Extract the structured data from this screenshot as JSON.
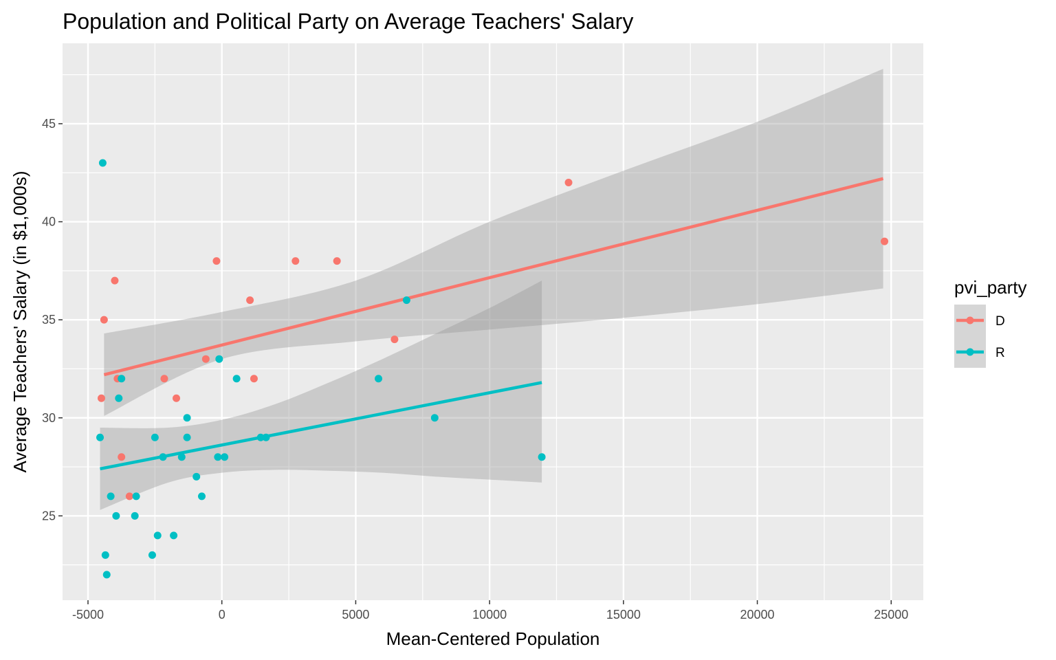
{
  "chart_data": {
    "type": "scatter",
    "title": "Population and Political Party on Average Teachers' Salary",
    "xlabel": "Mean-Centered Population",
    "ylabel": "Average Teachers' Salary (in $1,000s)",
    "xlim": [
      -5950,
      26200
    ],
    "ylim": [
      20.7,
      49.1
    ],
    "x_ticks": [
      -5000,
      0,
      5000,
      10000,
      15000,
      20000,
      25000
    ],
    "x_tick_labels": [
      "-5000",
      "0",
      "5000",
      "10000",
      "15000",
      "20000",
      "25000"
    ],
    "y_ticks": [
      25,
      30,
      35,
      40,
      45
    ],
    "y_tick_labels": [
      "25",
      "30",
      "35",
      "40",
      "45"
    ],
    "grid": true,
    "legend": {
      "title": "pvi_party",
      "position": "right",
      "entries": [
        "D",
        "R"
      ]
    },
    "colors": {
      "D": "#F8766D",
      "R": "#00BFC4",
      "panel": "#EBEBEB",
      "ribbon": "#999999"
    },
    "series": [
      {
        "name": "D",
        "color": "#F8766D",
        "points": [
          [
            -4500,
            31
          ],
          [
            -4400,
            35
          ],
          [
            -4000,
            37
          ],
          [
            -3900,
            32
          ],
          [
            -3750,
            28
          ],
          [
            -3450,
            26
          ],
          [
            -2150,
            32
          ],
          [
            -1700,
            31
          ],
          [
            -600,
            33
          ],
          [
            -200,
            38
          ],
          [
            1050,
            36
          ],
          [
            1200,
            32
          ],
          [
            2750,
            38
          ],
          [
            4300,
            38
          ],
          [
            6450,
            34
          ],
          [
            12950,
            42
          ],
          [
            24750,
            39
          ]
        ],
        "fit": {
          "x": [
            -4400,
            24700
          ],
          "y": [
            32.2,
            42.2
          ]
        },
        "ci": {
          "x": [
            -4400,
            0,
            5000,
            10000,
            15000,
            20000,
            24700
          ],
          "lower": [
            30.1,
            33.0,
            33.9,
            34.5,
            35.1,
            35.8,
            36.6
          ],
          "upper": [
            34.3,
            35.4,
            37.0,
            40.0,
            42.6,
            45.1,
            47.8
          ]
        }
      },
      {
        "name": "R",
        "color": "#00BFC4",
        "points": [
          [
            -4550,
            29
          ],
          [
            -4450,
            43
          ],
          [
            -4350,
            23
          ],
          [
            -4300,
            22
          ],
          [
            -4150,
            26
          ],
          [
            -3950,
            25
          ],
          [
            -3850,
            31
          ],
          [
            -3750,
            32
          ],
          [
            -3250,
            25
          ],
          [
            -3200,
            26
          ],
          [
            -2600,
            23
          ],
          [
            -2500,
            29
          ],
          [
            -2400,
            24
          ],
          [
            -2200,
            28
          ],
          [
            -1800,
            24
          ],
          [
            -1500,
            28
          ],
          [
            -1300,
            30
          ],
          [
            -1300,
            29
          ],
          [
            -950,
            27
          ],
          [
            -750,
            26
          ],
          [
            -100,
            33
          ],
          [
            -150,
            28
          ],
          [
            100,
            28
          ],
          [
            550,
            32
          ],
          [
            1450,
            29
          ],
          [
            1650,
            29
          ],
          [
            5850,
            32
          ],
          [
            6900,
            36
          ],
          [
            7950,
            30
          ],
          [
            11950,
            28
          ]
        ],
        "fit": {
          "x": [
            -4550,
            11950
          ],
          "y": [
            27.4,
            31.8
          ]
        },
        "ci": {
          "x": [
            -4550,
            -2000,
            0,
            2000,
            4000,
            6000,
            8000,
            10000,
            11950
          ],
          "lower": [
            25.3,
            26.7,
            27.2,
            27.35,
            27.3,
            27.2,
            27.0,
            26.85,
            26.7
          ],
          "upper": [
            29.5,
            29.5,
            29.9,
            30.7,
            31.8,
            33.0,
            34.3,
            35.6,
            37.0
          ]
        }
      }
    ]
  }
}
